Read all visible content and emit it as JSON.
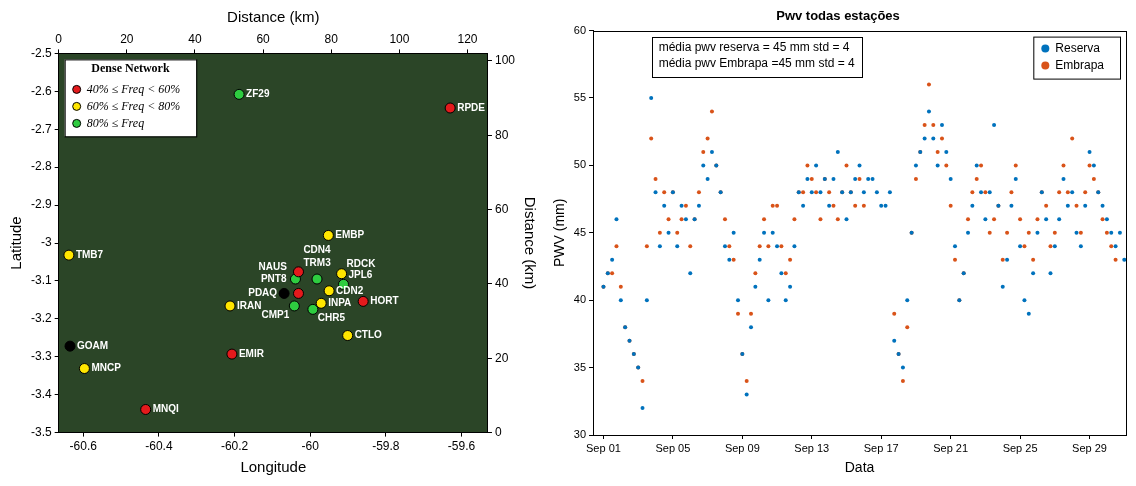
{
  "chart_data": [
    {
      "type": "scatter",
      "xlabel": "Longitude",
      "ylabel": "Latitude",
      "x2label": "Distance (km)",
      "y2label": "Distance (km)",
      "xlim": [
        -60.665,
        -59.53
      ],
      "xticks": [
        -60.6,
        -60.4,
        -60.2,
        -60,
        -59.8,
        -59.6
      ],
      "x2lim": [
        0,
        126
      ],
      "x2ticks": [
        0,
        20,
        40,
        60,
        80,
        100,
        120
      ],
      "ylim": [
        -3.5,
        -2.5
      ],
      "yticks": [
        -3.5,
        -3.4,
        -3.3,
        -3.2,
        -3.1,
        -3,
        -2.9,
        -2.8,
        -2.7,
        -2.6,
        -2.5
      ],
      "y2lim": [
        0,
        102
      ],
      "y2ticks": [
        0,
        20,
        40,
        60,
        80,
        100
      ],
      "grid": false,
      "legend": "upper left",
      "legend_title": "Dense Network",
      "data_labels": true,
      "series": [
        {
          "name": "40% ≤ Freq < 60%",
          "color": "#e41a1c",
          "marker": "circle",
          "x": [
            -59.63,
            -60.031,
            -60.031,
            -59.86,
            -60.207,
            -60.435
          ],
          "y": [
            -2.644,
            -3.076,
            -3.133,
            -3.154,
            -3.293,
            -3.439
          ],
          "labels": [
            "RPDE",
            "TRM3",
            "PNT8",
            "HORT",
            "EMIR",
            "MNQI"
          ]
        },
        {
          "name": "60% ≤ Freq < 80%",
          "color": "#ffe600",
          "marker": "circle",
          "x": [
            -60.638,
            -59.952,
            -59.917,
            -59.95,
            -59.971,
            -60.212,
            -59.901,
            -60.597
          ],
          "y": [
            -3.032,
            -2.98,
            -3.081,
            -3.126,
            -3.159,
            -3.166,
            -3.244,
            -3.331
          ],
          "labels": [
            "TMB7",
            "EMBP",
            "RDCK",
            "CDN2",
            "INPA",
            "IRAN",
            "CTLO",
            "MNCP"
          ]
        },
        {
          "name": "80% ≤ Freq",
          "color": "#2ecc40",
          "marker": "circle",
          "x": [
            -60.188,
            -60.039,
            -59.982,
            -59.912,
            -60.042,
            -59.993
          ],
          "y": [
            -2.608,
            -3.095,
            -3.095,
            -3.109,
            -3.166,
            -3.175
          ],
          "labels": [
            "ZF29",
            "NAUS",
            "CDN4",
            "JPL6",
            "CMP1",
            "CHR5"
          ]
        },
        {
          "color": "#000000",
          "marker": "circle",
          "x": [
            -60.069,
            -60.635
          ],
          "y": [
            -3.133,
            -3.272
          ],
          "labels": [
            "PDAQ",
            "GOAM"
          ]
        }
      ]
    },
    {
      "type": "scatter",
      "title": "Pwv todas estações",
      "xlabel": "Data",
      "ylabel": "PWV (mm)",
      "xlim": [
        0.4,
        31.1
      ],
      "xticks": [
        {
          "value": 1,
          "label": "Sep 01"
        },
        {
          "value": 5,
          "label": "Sep 05"
        },
        {
          "value": 9,
          "label": "Sep 09"
        },
        {
          "value": 13,
          "label": "Sep 13"
        },
        {
          "value": 17,
          "label": "Sep 17"
        },
        {
          "value": 21,
          "label": "Sep 21"
        },
        {
          "value": 25,
          "label": "Sep 25"
        },
        {
          "value": 29,
          "label": "Sep 29"
        }
      ],
      "ylim": [
        30,
        60
      ],
      "yticks": [
        30,
        35,
        40,
        45,
        50,
        55,
        60
      ],
      "grid": false,
      "legend": "upper right",
      "annotations": [
        "média pwv reserva = 45 mm std = 4",
        "média pwv Embrapa =45 mm std = 4"
      ],
      "x": [
        1,
        1.25,
        1.5,
        1.75,
        2,
        2.25,
        2.5,
        2.75,
        3,
        3.25,
        3.5,
        3.75,
        4,
        4.25,
        4.5,
        4.75,
        5,
        5.25,
        5.5,
        5.75,
        6,
        6.25,
        6.5,
        6.75,
        7,
        7.25,
        7.5,
        7.75,
        8,
        8.25,
        8.5,
        8.75,
        9,
        9.25,
        9.5,
        9.75,
        10,
        10.25,
        10.5,
        10.75,
        11,
        11.25,
        11.5,
        11.75,
        12,
        12.25,
        12.5,
        12.75,
        13,
        13.25,
        13.5,
        13.75,
        14,
        14.25,
        14.5,
        14.75,
        15,
        15.25,
        15.5,
        15.75,
        16,
        16.25,
        16.5,
        16.75,
        17,
        17.25,
        17.5,
        17.75,
        18,
        18.25,
        18.5,
        18.75,
        19,
        19.25,
        19.5,
        19.75,
        20,
        20.25,
        20.5,
        20.75,
        21,
        21.25,
        21.5,
        21.75,
        22,
        22.25,
        22.5,
        22.75,
        23,
        23.25,
        23.5,
        23.75,
        24,
        24.25,
        24.5,
        24.75,
        25,
        25.25,
        25.5,
        25.75,
        26,
        26.25,
        26.5,
        26.75,
        27,
        27.25,
        27.5,
        27.75,
        28,
        28.25,
        28.5,
        28.75,
        29,
        29.25,
        29.5,
        29.75,
        30,
        30.25,
        30.5,
        30.75,
        31
      ],
      "series": [
        {
          "name": "Reserva",
          "color": "#0072bd",
          "marker": "circle",
          "values": [
            41,
            42,
            43,
            46,
            40,
            38,
            37,
            36,
            35,
            32,
            40,
            55,
            48,
            44,
            47,
            45,
            48,
            44,
            47,
            46,
            42,
            46,
            47,
            50,
            49,
            51,
            50,
            48,
            44,
            43,
            45,
            40,
            36,
            33,
            38,
            41,
            43,
            45,
            40,
            45,
            44,
            42,
            40,
            41,
            44,
            48,
            47,
            49,
            48,
            50,
            48,
            49,
            47,
            49,
            51,
            48,
            46,
            48,
            49,
            50,
            48,
            49,
            49,
            48,
            47,
            47,
            48,
            37,
            36,
            35,
            40,
            45,
            50,
            51,
            52,
            54,
            52,
            50,
            53,
            51,
            49,
            44,
            40,
            42,
            45,
            47,
            50,
            48,
            46,
            48,
            53,
            47,
            41,
            43,
            47,
            49,
            44,
            40,
            39,
            42,
            45,
            48,
            46,
            42,
            44,
            46,
            49,
            47,
            48,
            45,
            44,
            47,
            51,
            50,
            48,
            47,
            46,
            45,
            44,
            45,
            43
          ]
        },
        {
          "name": "Embrapa",
          "color": "#d95319",
          "marker": "circle",
          "values": [
            41,
            42,
            42,
            44,
            41,
            38,
            37,
            36,
            35,
            34,
            44,
            52,
            49,
            45,
            48,
            46,
            48,
            45,
            46,
            47,
            44,
            46,
            48,
            51,
            52,
            54,
            50,
            48,
            46,
            44,
            43,
            39,
            36,
            34,
            39,
            42,
            44,
            46,
            44,
            47,
            47,
            44,
            42,
            43,
            46,
            48,
            48,
            50,
            49,
            48,
            46,
            49,
            48,
            47,
            46,
            48,
            50,
            48,
            47,
            49,
            47,
            null,
            null,
            null,
            null,
            null,
            null,
            39,
            36,
            34,
            38,
            45,
            49,
            51,
            53,
            56,
            53,
            51,
            52,
            50,
            47,
            43,
            40,
            42,
            46,
            48,
            49,
            50,
            48,
            45,
            46,
            47,
            43,
            45,
            48,
            50,
            46,
            44,
            45,
            43,
            46,
            48,
            47,
            44,
            45,
            48,
            50,
            48,
            52,
            47,
            45,
            48,
            50,
            49,
            48,
            46,
            45,
            44,
            43,
            null,
            null
          ]
        }
      ]
    }
  ]
}
